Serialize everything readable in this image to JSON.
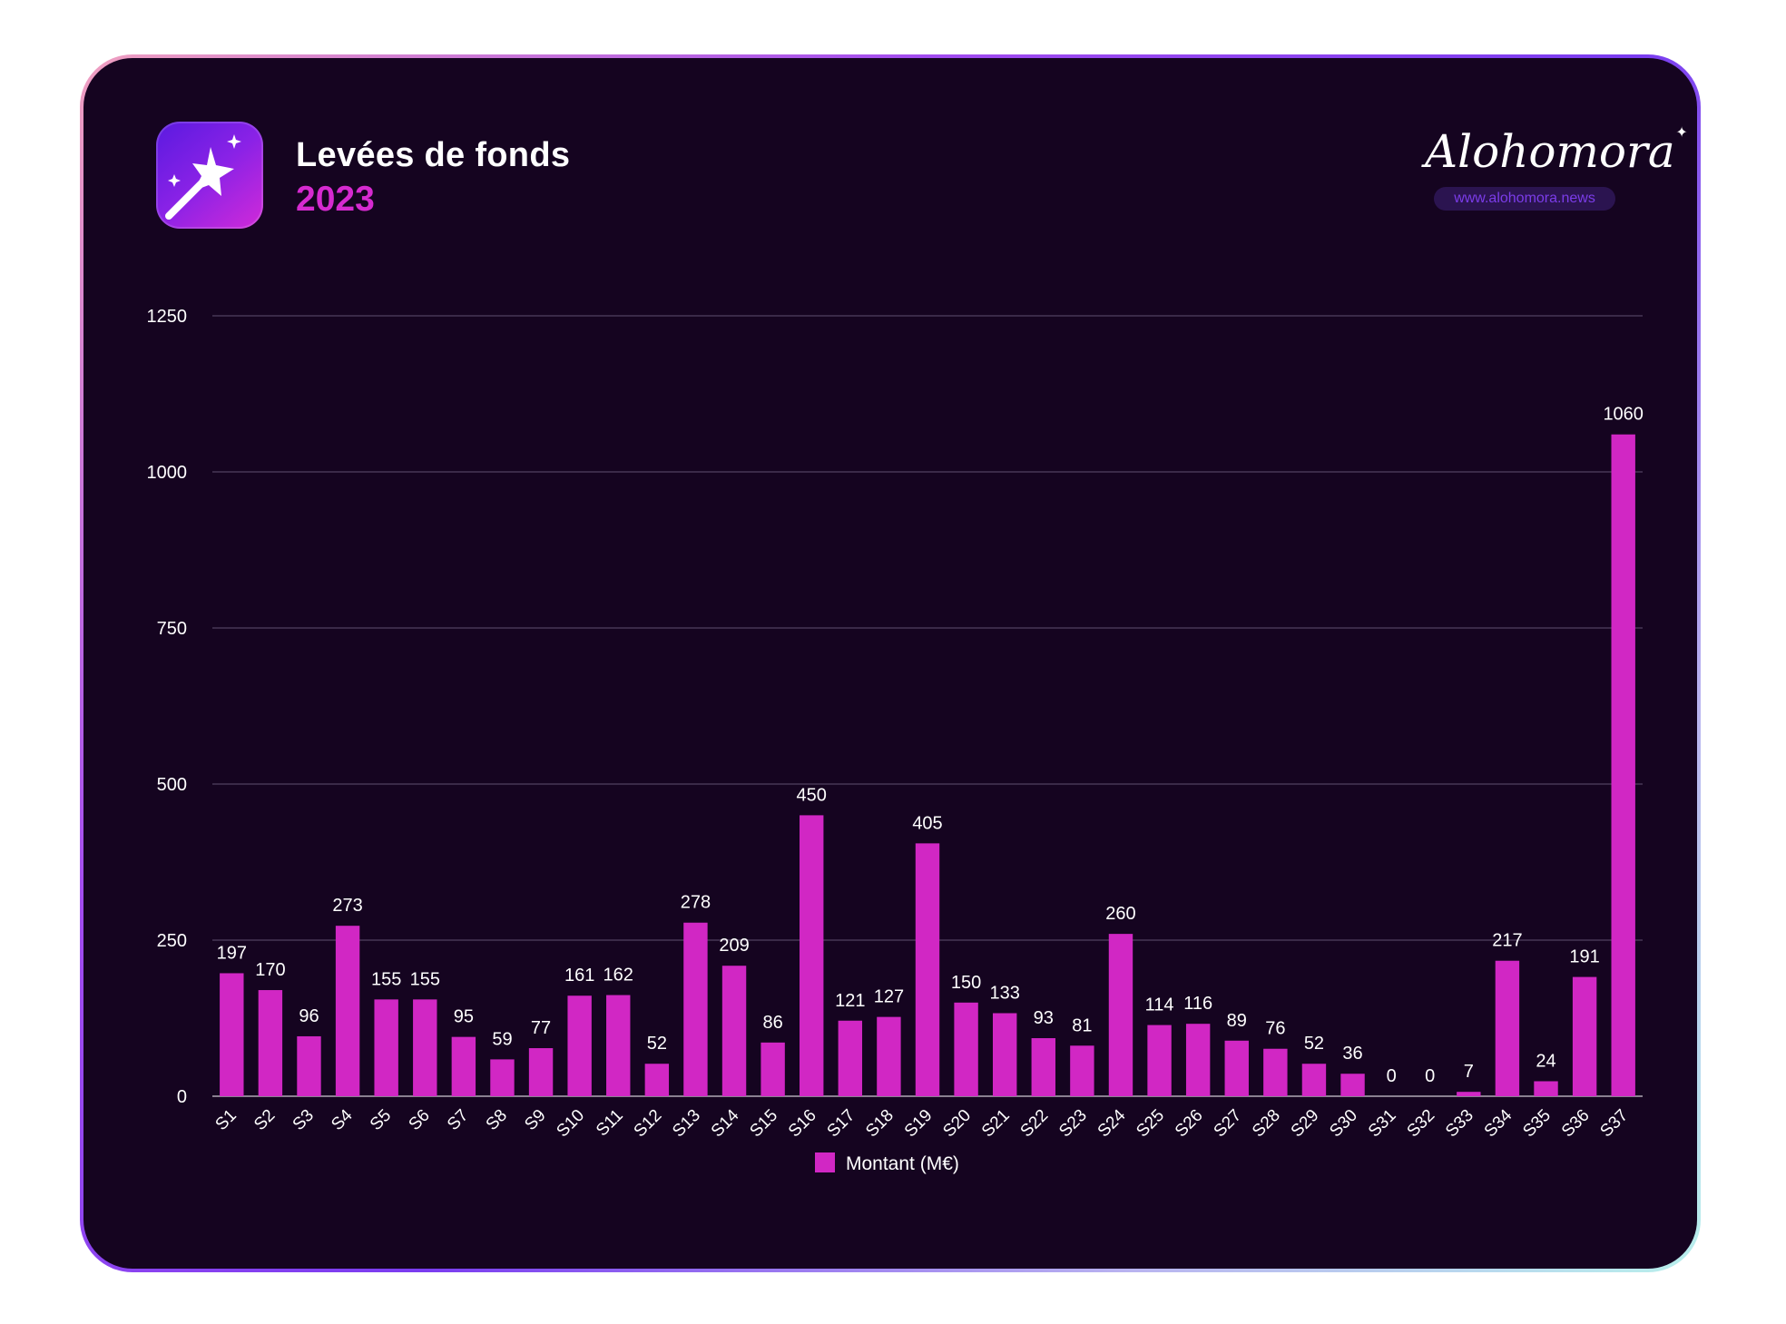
{
  "header": {
    "title": "Levées de fonds",
    "year": "2023"
  },
  "brand": {
    "name": "Alohomora",
    "url": "www.alohomora.news"
  },
  "colors": {
    "bar": "#d127c4",
    "background": "#150420",
    "accent": "#d62ad0"
  },
  "chart_data": {
    "type": "bar",
    "title": "Levées de fonds 2023",
    "categories": [
      "S1",
      "S2",
      "S3",
      "S4",
      "S5",
      "S6",
      "S7",
      "S8",
      "S9",
      "S10",
      "S11",
      "S12",
      "S13",
      "S14",
      "S15",
      "S16",
      "S17",
      "S18",
      "S19",
      "S20",
      "S21",
      "S22",
      "S23",
      "S24",
      "S25",
      "S26",
      "S27",
      "S28",
      "S29",
      "S30",
      "S31",
      "S32",
      "S33",
      "S34",
      "S35",
      "S36",
      "S37"
    ],
    "series": [
      {
        "name": "Montant (M€)",
        "values": [
          197,
          170,
          96,
          273,
          155,
          155,
          95,
          59,
          77,
          161,
          162,
          52,
          278,
          209,
          86,
          450,
          121,
          127,
          405,
          150,
          133,
          93,
          81,
          260,
          114,
          116,
          89,
          76,
          52,
          36,
          0,
          0,
          7,
          217,
          24,
          191,
          1060
        ]
      }
    ],
    "ylim": [
      0,
      1250
    ],
    "yticks": [
      0,
      250,
      500,
      750,
      1000,
      1250
    ],
    "xlabel": "",
    "ylabel": "",
    "grid": true,
    "legend": "bottom-center"
  }
}
